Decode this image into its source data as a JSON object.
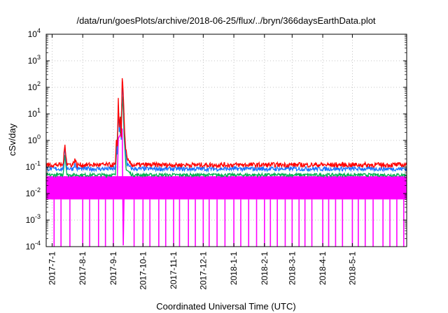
{
  "chart_data": {
    "type": "line",
    "title": "/data/run/goesPlots/archive/2018-06-25/flux/../bryn/366daysEarthData.plot",
    "xlabel": "Coordinated Universal Time (UTC)",
    "ylabel": "cSv/day",
    "x_range": [
      "2017-06-25",
      "2018-06-25"
    ],
    "ylim": [
      0.0001,
      10000
    ],
    "y_scale": "log",
    "grid": true,
    "legend": "none",
    "x_ticks": [
      "2017-7-1",
      "2017-8-1",
      "2017-9-1",
      "2017-10-1",
      "2017-11-1",
      "2017-12-1",
      "2018-1-1",
      "2018-2-1",
      "2018-3-1",
      "2018-4-1",
      "2018-5-1"
    ],
    "y_ticks": [
      {
        "value": 0.0001,
        "mantissa": "10",
        "exp": "-4"
      },
      {
        "value": 0.001,
        "mantissa": "10",
        "exp": "-3"
      },
      {
        "value": 0.01,
        "mantissa": "10",
        "exp": "-2"
      },
      {
        "value": 0.1,
        "mantissa": "10",
        "exp": "-1"
      },
      {
        "value": 1,
        "mantissa": "10",
        "exp": "0"
      },
      {
        "value": 10,
        "mantissa": "10",
        "exp": "1"
      },
      {
        "value": 100,
        "mantissa": "10",
        "exp": "2"
      },
      {
        "value": 1000,
        "mantissa": "10",
        "exp": "3"
      },
      {
        "value": 10000,
        "mantissa": "10",
        "exp": "4"
      }
    ],
    "series": [
      {
        "color": "#ff0000",
        "values": [
          [
            "2017-06-25",
            0.12
          ],
          [
            "2017-07-12",
            0.12
          ],
          [
            "2017-07-14",
            0.7
          ],
          [
            "2017-07-16",
            0.13
          ],
          [
            "2017-07-22",
            0.12
          ],
          [
            "2017-07-24",
            0.2
          ],
          [
            "2017-07-26",
            0.12
          ],
          [
            "2017-09-03",
            0.12
          ],
          [
            "2017-09-04",
            0.9
          ],
          [
            "2017-09-05",
            0.5
          ],
          [
            "2017-09-06",
            40
          ],
          [
            "2017-09-07",
            3
          ],
          [
            "2017-09-08",
            8
          ],
          [
            "2017-09-09",
            1.5
          ],
          [
            "2017-09-10",
            250
          ],
          [
            "2017-09-11",
            60
          ],
          [
            "2017-09-12",
            5
          ],
          [
            "2017-09-13",
            0.8
          ],
          [
            "2017-09-15",
            0.18
          ],
          [
            "2017-09-20",
            0.12
          ],
          [
            "2018-06-25",
            0.12
          ]
        ]
      },
      {
        "color": "#1a75ff",
        "values": [
          [
            "2017-06-25",
            0.085
          ],
          [
            "2017-07-12",
            0.085
          ],
          [
            "2017-07-14",
            0.5
          ],
          [
            "2017-07-16",
            0.09
          ],
          [
            "2017-07-22",
            0.085
          ],
          [
            "2017-07-24",
            0.13
          ],
          [
            "2017-07-26",
            0.085
          ],
          [
            "2017-09-03",
            0.085
          ],
          [
            "2017-09-04",
            0.6
          ],
          [
            "2017-09-05",
            0.3
          ],
          [
            "2017-09-06",
            20
          ],
          [
            "2017-09-07",
            2
          ],
          [
            "2017-09-08",
            5
          ],
          [
            "2017-09-09",
            1
          ],
          [
            "2017-09-10",
            180
          ],
          [
            "2017-09-11",
            40
          ],
          [
            "2017-09-12",
            3
          ],
          [
            "2017-09-13",
            0.5
          ],
          [
            "2017-09-15",
            0.12
          ],
          [
            "2017-09-20",
            0.085
          ],
          [
            "2018-06-25",
            0.085
          ]
        ]
      },
      {
        "color": "#00b050",
        "values": [
          [
            "2017-06-25",
            0.05
          ],
          [
            "2017-07-12",
            0.05
          ],
          [
            "2017-07-14",
            0.3
          ],
          [
            "2017-07-16",
            0.05
          ],
          [
            "2017-09-03",
            0.05
          ],
          [
            "2017-09-06",
            8
          ],
          [
            "2017-09-08",
            2
          ],
          [
            "2017-09-10",
            40
          ],
          [
            "2017-09-11",
            10
          ],
          [
            "2017-09-12",
            1
          ],
          [
            "2017-09-14",
            0.08
          ],
          [
            "2017-09-20",
            0.05
          ],
          [
            "2018-06-25",
            0.05
          ]
        ]
      },
      {
        "color": "#ff00ff",
        "values": [
          [
            "2017-06-25",
            0.035
          ],
          [
            "2017-09-05",
            0.035
          ],
          [
            "2017-09-06",
            1
          ],
          [
            "2017-09-10",
            3
          ],
          [
            "2017-09-11",
            0.0001
          ],
          [
            "2017-09-12",
            0.035
          ],
          [
            "2018-06-25",
            0.035
          ]
        ]
      }
    ],
    "magenta_band": [
      0.006,
      0.045
    ],
    "magenta_dropout_dates": [
      "2017-07-03",
      "2017-07-10",
      "2017-07-19",
      "2017-08-01",
      "2017-08-08",
      "2017-08-17",
      "2017-08-24",
      "2017-09-01",
      "2017-09-22",
      "2017-10-01",
      "2017-10-08",
      "2017-10-17",
      "2017-10-24",
      "2017-11-01",
      "2017-11-07",
      "2017-11-16",
      "2017-11-23",
      "2017-12-01",
      "2017-12-07",
      "2017-12-15",
      "2017-12-23",
      "2018-01-01",
      "2018-01-08",
      "2018-01-16",
      "2018-01-24",
      "2018-02-01",
      "2018-02-07",
      "2018-02-14",
      "2018-02-22",
      "2018-03-01",
      "2018-03-08",
      "2018-03-14",
      "2018-03-21",
      "2018-04-01",
      "2018-04-07",
      "2018-04-14",
      "2018-04-21",
      "2018-05-01",
      "2018-05-07",
      "2018-05-14",
      "2018-05-22",
      "2018-06-01",
      "2018-06-08",
      "2018-06-15",
      "2018-06-22"
    ]
  }
}
